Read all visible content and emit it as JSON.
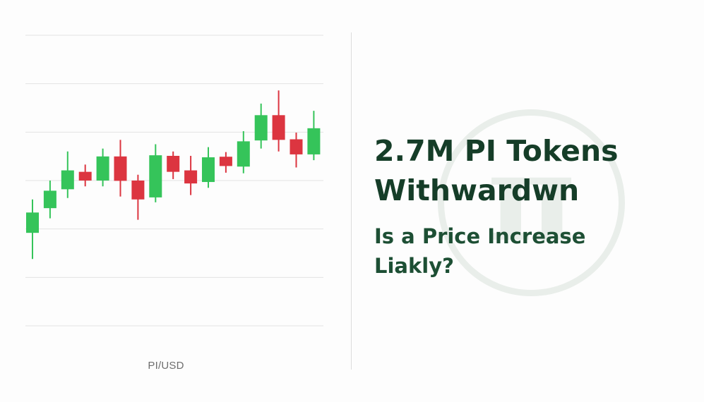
{
  "chart_data": {
    "type": "candlestick",
    "pair_label": "PI/USD",
    "grid": true,
    "colors": {
      "up": "#35c45a",
      "down": "#dc3540",
      "grid": "#e3e3e3"
    },
    "candles": [
      {
        "open": 32,
        "close": 39,
        "high": 43.5,
        "low": 23
      },
      {
        "open": 40.5,
        "close": 46.5,
        "high": 50,
        "low": 37
      },
      {
        "open": 47,
        "close": 53.5,
        "high": 60,
        "low": 44
      },
      {
        "open": 53,
        "close": 50,
        "high": 55.5,
        "low": 48
      },
      {
        "open": 50,
        "close": 58.3,
        "high": 61,
        "low": 48
      },
      {
        "open": 58.3,
        "close": 49.9,
        "high": 64,
        "low": 44.5
      },
      {
        "open": 50,
        "close": 43.5,
        "high": 52,
        "low": 36.5
      },
      {
        "open": 44.2,
        "close": 58.7,
        "high": 62.5,
        "low": 42.5
      },
      {
        "open": 58.5,
        "close": 53,
        "high": 60,
        "low": 50.5
      },
      {
        "open": 53.5,
        "close": 49,
        "high": 58.5,
        "low": 45
      },
      {
        "open": 49.5,
        "close": 58,
        "high": 61.5,
        "low": 47.5
      },
      {
        "open": 58.2,
        "close": 55,
        "high": 59.8,
        "low": 52.7
      },
      {
        "open": 54.8,
        "close": 63.5,
        "high": 67,
        "low": 52.5
      },
      {
        "open": 63.8,
        "close": 72.5,
        "high": 76.5,
        "low": 61
      },
      {
        "open": 72.5,
        "close": 64,
        "high": 81,
        "low": 60
      },
      {
        "open": 64.2,
        "close": 59,
        "high": 66.5,
        "low": 54.5
      },
      {
        "open": 59,
        "close": 68,
        "high": 74,
        "low": 57
      }
    ]
  },
  "headline": {
    "line1": "2.7M PI Tokens",
    "line2": "Withwardwn"
  },
  "subheadline": {
    "line1": "Is a Price Increase",
    "line2": "Liakly?"
  },
  "watermark": {
    "symbol": "π",
    "color": "#e9eeea"
  }
}
